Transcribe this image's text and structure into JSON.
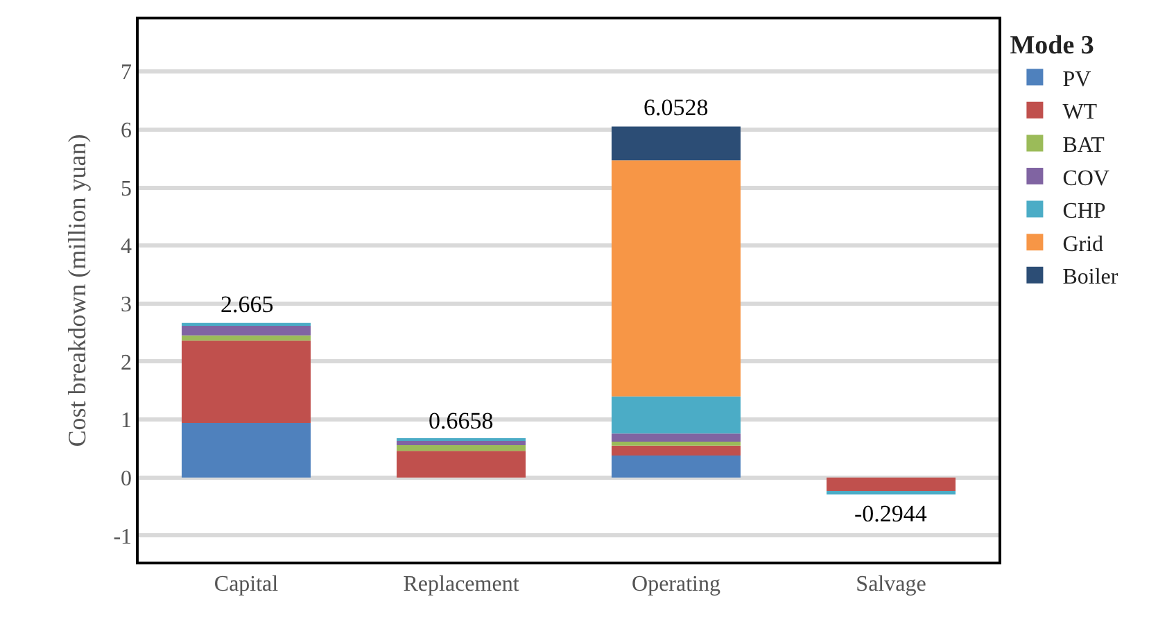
{
  "chart_data": {
    "type": "bar",
    "stacked": true,
    "ylabel": "Cost breakdown (million yuan)",
    "legend_title": "Mode 3",
    "legend": "right",
    "categories": [
      "Capital",
      "Replacement",
      "Operating",
      "Salvage"
    ],
    "series": [
      {
        "name": "PV",
        "color": "#4f81bd",
        "values": [
          0.94,
          null,
          0.38,
          null
        ]
      },
      {
        "name": "WT",
        "color": "#c0504d",
        "values": [
          1.42,
          0.46,
          0.17,
          -0.25
        ]
      },
      {
        "name": "BAT",
        "color": "#9bbb59",
        "values": [
          0.09,
          0.1,
          0.07,
          null
        ]
      },
      {
        "name": "COV",
        "color": "#8064a2",
        "values": [
          0.18,
          0.08,
          0.14,
          null
        ]
      },
      {
        "name": "CHP",
        "color": "#4bacc6",
        "values": [
          0.035,
          0.0258,
          0.64,
          -0.0444
        ]
      },
      {
        "name": "Grid",
        "color": "#f79646",
        "values": [
          null,
          null,
          4.07,
          null
        ]
      },
      {
        "name": "Boiler",
        "color": "#2c4d75",
        "values": [
          null,
          null,
          0.5828,
          null
        ]
      }
    ],
    "totals": [
      "2.665",
      "0.6658",
      "6.0528",
      "-0.2944"
    ],
    "ylim": [
      -1.45,
      7.9
    ],
    "yticks": [
      -1,
      0,
      1,
      2,
      3,
      4,
      5,
      6,
      7
    ],
    "grid": "y"
  }
}
